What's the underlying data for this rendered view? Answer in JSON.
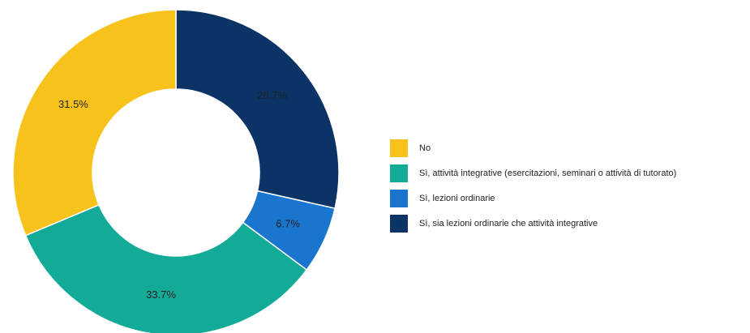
{
  "chart_data": {
    "type": "pie",
    "donut": true,
    "slices": [
      {
        "label": "Sì, sia lezioni ordinarie che attività integrative",
        "value": 28.7,
        "value_label": "28.7%",
        "color": "#0b3366"
      },
      {
        "label": "Sì, lezioni ordinarie",
        "value": 6.7,
        "value_label": "6.7%",
        "color": "#1a75cf"
      },
      {
        "label": "Sì, attività integrative (esercitazioni, seminari o attività di tutorato)",
        "value": 33.7,
        "value_label": "33.7%",
        "color": "#13aa98"
      },
      {
        "label": "No",
        "value": 31.5,
        "value_label": "31.5%",
        "color": "#f8c21c"
      }
    ],
    "legend": {
      "placement": "right",
      "items": [
        {
          "label": "No",
          "color": "#f8c21c"
        },
        {
          "label": "Sì, attività integrative (esercitazioni, seminari o attività di tutorato)",
          "color": "#13aa98"
        },
        {
          "label": "Sì, lezioni ordinarie",
          "color": "#1a75cf"
        },
        {
          "label": "Sì, sia lezioni ordinarie che attività integrative",
          "color": "#0b3366"
        }
      ]
    }
  }
}
